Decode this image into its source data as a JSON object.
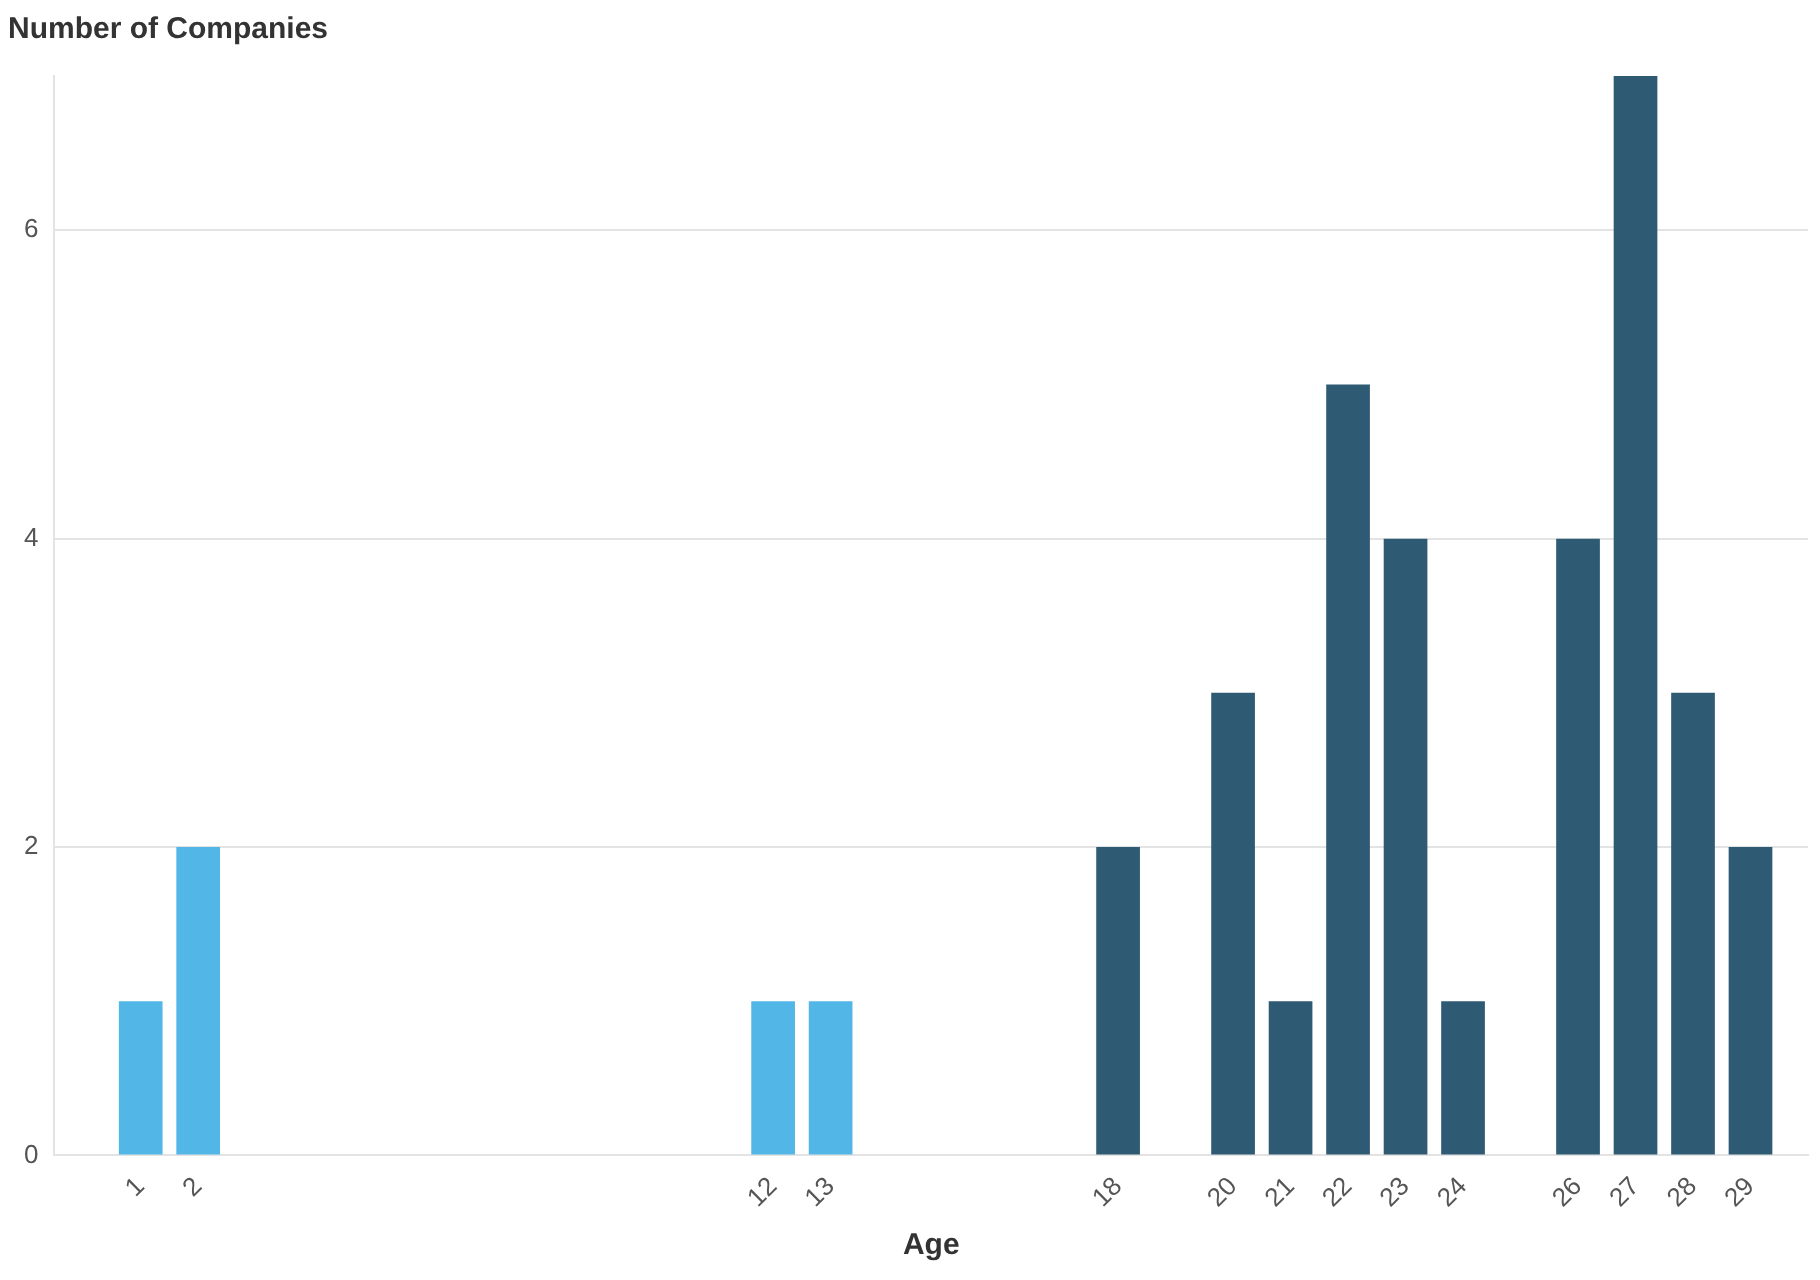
{
  "chart_data": {
    "type": "bar",
    "xlabel": "Age",
    "ylabel": "Number of Companies",
    "x": [
      1,
      2,
      12,
      13,
      18,
      20,
      21,
      22,
      23,
      24,
      26,
      27,
      28,
      29
    ],
    "values": [
      1,
      2,
      1,
      1,
      2,
      3,
      1,
      5,
      4,
      1,
      4,
      7,
      3,
      2
    ],
    "colors": [
      "#52b6e6",
      "#52b6e6",
      "#52b6e6",
      "#52b6e6",
      "#2f5a73",
      "#2f5a73",
      "#2f5a73",
      "#2f5a73",
      "#2f5a73",
      "#2f5a73",
      "#2f5a73",
      "#2f5a73",
      "#2f5a73",
      "#2f5a73"
    ],
    "xlim": [
      -0.5,
      30
    ],
    "xticks": [
      1,
      2,
      12,
      13,
      18,
      20,
      21,
      22,
      23,
      24,
      26,
      27,
      28,
      29
    ],
    "ylim": [
      0,
      7
    ],
    "yticks": [
      0,
      2,
      4,
      6
    ],
    "grid": "y",
    "legend": false
  }
}
